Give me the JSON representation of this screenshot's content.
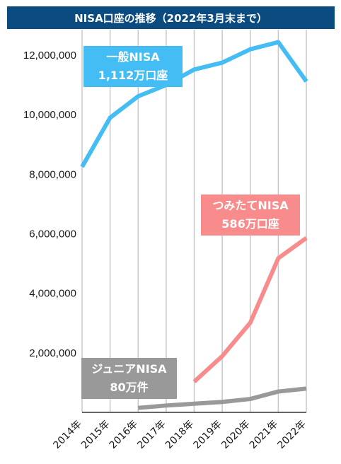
{
  "title": "NISA口座の推移（2022年3月末まで）",
  "colors": {
    "title_bg": "#0b4b80",
    "grid": "#c8c8c8",
    "axis": "#333333"
  },
  "chart_data": {
    "type": "line",
    "categories": [
      "2014年",
      "2015年",
      "2016年",
      "2017年",
      "2018年",
      "2019年",
      "2020年",
      "2021年",
      "2022年"
    ],
    "ylim": [
      0,
      13000000
    ],
    "yticks": [
      {
        "value": 2000000,
        "label": "2,000,000"
      },
      {
        "value": 4000000,
        "label": "4,000,000"
      },
      {
        "value": 6000000,
        "label": "6,000,000"
      },
      {
        "value": 8000000,
        "label": "8,000,000"
      },
      {
        "value": 10000000,
        "label": "10,000,000"
      },
      {
        "value": 12000000,
        "label": "12,000,000"
      }
    ],
    "grid": true,
    "series": [
      {
        "name": "一般NISA",
        "color": "#44bdf5",
        "values": [
          8250000,
          9900000,
          10620000,
          11000000,
          11520000,
          11750000,
          12200000,
          12440000,
          11120000
        ]
      },
      {
        "name": "つみたてNISA",
        "color": "#f88c8c",
        "values": [
          null,
          null,
          null,
          null,
          1030000,
          1890000,
          3010000,
          5180000,
          5860000
        ]
      },
      {
        "name": "ジュニアNISA",
        "color": "#999999",
        "values": [
          null,
          null,
          150000,
          230000,
          290000,
          350000,
          450000,
          700000,
          800000
        ]
      }
    ],
    "annotations": [
      {
        "series": "一般NISA",
        "line1": "一般NISA",
        "line2": "1,112万口座",
        "color": "#44bdf5"
      },
      {
        "series": "つみたてNISA",
        "line1": "つみたてNISA",
        "line2": "586万口座",
        "color": "#f88c8c"
      },
      {
        "series": "ジュニアNISA",
        "line1": "ジュニアNISA",
        "line2": "80万件",
        "color": "#999999"
      }
    ]
  }
}
